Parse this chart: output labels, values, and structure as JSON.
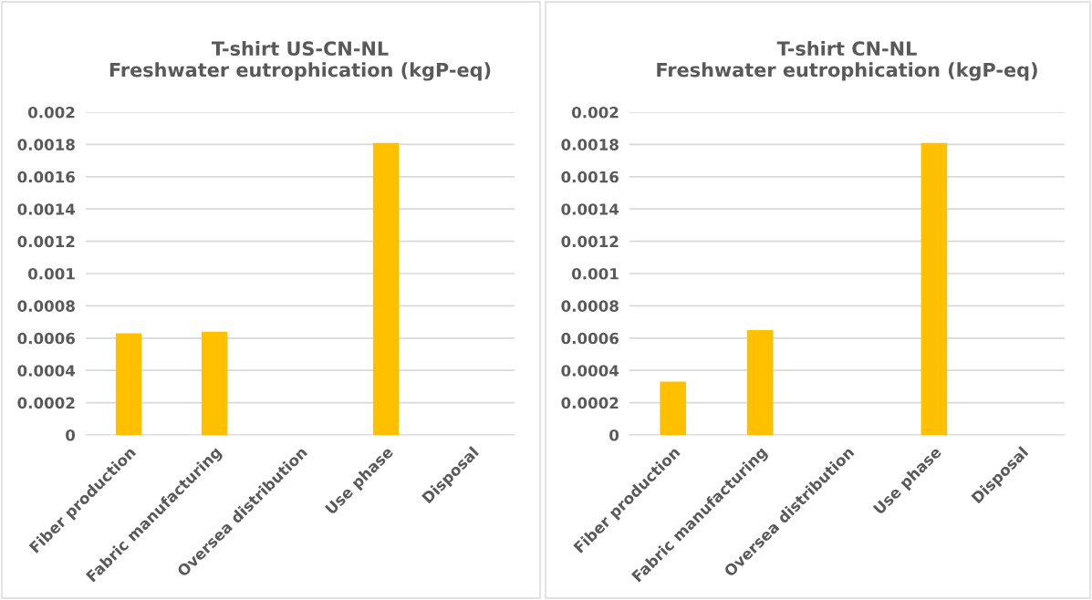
{
  "chart_data": [
    {
      "type": "bar",
      "title": "T-shirt US-CN-NL\nFreshwater eutrophication (kgP-eq)",
      "categories": [
        "Fiber production",
        "Fabric manufacturing",
        "Oversea distribution",
        "Use phase",
        "Disposal"
      ],
      "values": [
        0.00063,
        0.00064,
        0,
        0.00181,
        0
      ],
      "color": "#ffc000",
      "ylim": [
        0,
        0.002
      ],
      "yticks": [
        0,
        0.0002,
        0.0004,
        0.0006,
        0.0008,
        0.001,
        0.0012,
        0.0014,
        0.0016,
        0.0018,
        0.002
      ],
      "grid": "y"
    },
    {
      "type": "bar",
      "title": "T-shirt CN-NL\nFreshwater eutrophication (kgP-eq)",
      "categories": [
        "Fiber production",
        "Fabric manufacturing",
        "Oversea distribution",
        "Use phase",
        "Disposal"
      ],
      "values": [
        0.00033,
        0.00065,
        0,
        0.00181,
        0
      ],
      "color": "#ffc000",
      "ylim": [
        0,
        0.002
      ],
      "yticks": [
        0,
        0.0002,
        0.0004,
        0.0006,
        0.0008,
        0.001,
        0.0012,
        0.0014,
        0.0016,
        0.0018,
        0.002
      ],
      "grid": "y"
    }
  ]
}
